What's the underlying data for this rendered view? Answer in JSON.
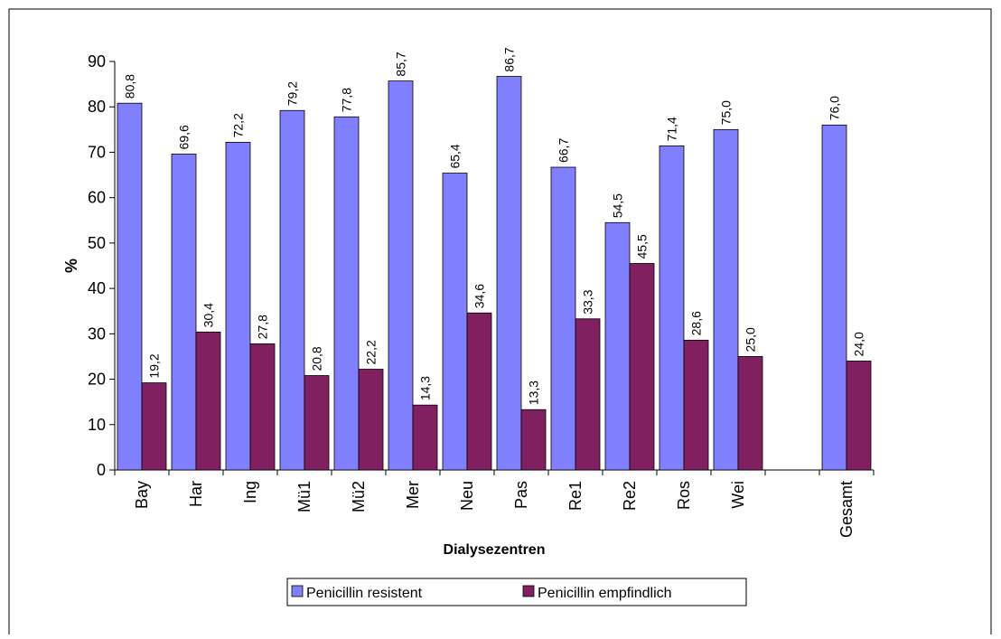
{
  "chart_data": {
    "type": "bar",
    "xlabel": "Dialysezentren",
    "ylabel": "%",
    "categories": [
      "Bay",
      "Har",
      "Ing",
      "Mü1",
      "Mü2",
      "Mer",
      "Neu",
      "Pas",
      "Re1",
      "Re2",
      "Ros",
      "Wei",
      null,
      "Gesamt"
    ],
    "series": [
      {
        "name": "Penicillin resistent",
        "color": "#8080ff",
        "values": [
          80.8,
          69.6,
          72.2,
          79.2,
          77.8,
          85.7,
          65.4,
          86.7,
          66.7,
          54.5,
          71.4,
          75.0,
          null,
          76.0
        ],
        "value_labels": [
          "80,8",
          "69,6",
          "72,2",
          "79,2",
          "77,8",
          "85,7",
          "65,4",
          "86,7",
          "66,7",
          "54,5",
          "71,4",
          "75,0",
          null,
          "76,0"
        ]
      },
      {
        "name": "Penicillin empfindlich",
        "color": "#802060",
        "values": [
          19.2,
          30.4,
          27.8,
          20.8,
          22.2,
          14.3,
          34.6,
          13.3,
          33.3,
          45.5,
          28.6,
          25.0,
          null,
          24.0
        ],
        "value_labels": [
          "19,2",
          "30,4",
          "27,8",
          "20,8",
          "22,2",
          "14,3",
          "34,6",
          "13,3",
          "33,3",
          "45,5",
          "28,6",
          "25,0",
          null,
          "24,0"
        ]
      }
    ],
    "ylim": [
      0,
      90
    ],
    "yticks": [
      0,
      10,
      20,
      30,
      40,
      50,
      60,
      70,
      80,
      90
    ],
    "grid": false
  }
}
